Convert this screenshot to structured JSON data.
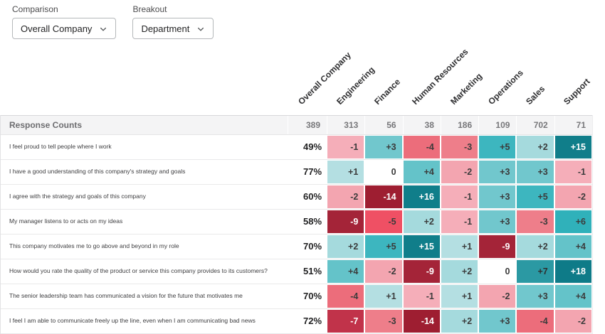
{
  "controls": {
    "comparison": {
      "label": "Comparison",
      "value": "Overall Company"
    },
    "breakout": {
      "label": "Breakout",
      "value": "Department"
    }
  },
  "icons": {
    "dropdown_chevron": "chevron-down"
  },
  "heatmap": {
    "corner_label": "Response Counts",
    "columns": [
      "Overall Company",
      "Engineering",
      "Finance",
      "Human Resources",
      "Marketing",
      "Operations",
      "Sales",
      "Support"
    ],
    "response_counts": [
      "389",
      "313",
      "56",
      "38",
      "186",
      "109",
      "702",
      "71"
    ],
    "rows": [
      {
        "label": "I feel proud to tell people where I work",
        "overall": "49%",
        "deltas": [
          -1,
          3,
          -4,
          -3,
          5,
          2,
          15
        ]
      },
      {
        "label": "I have a good understanding of this company's strategy and goals",
        "overall": "77%",
        "deltas": [
          1,
          0,
          4,
          -2,
          3,
          3,
          -1
        ]
      },
      {
        "label": "I agree with the strategy and goals of this company",
        "overall": "60%",
        "deltas": [
          -2,
          -14,
          16,
          -1,
          3,
          5,
          -2
        ]
      },
      {
        "label": "My manager listens to or acts on my ideas",
        "overall": "58%",
        "deltas": [
          -9,
          -5,
          2,
          -1,
          3,
          -3,
          6
        ]
      },
      {
        "label": "This company motivates me to go above and beyond in my role",
        "overall": "70%",
        "deltas": [
          2,
          5,
          15,
          1,
          -9,
          2,
          4
        ]
      },
      {
        "label": "How would you rate the quality of the product or service this company provides to its customers?",
        "overall": "51%",
        "deltas": [
          4,
          -2,
          -9,
          2,
          0,
          7,
          18
        ]
      },
      {
        "label": "The senior leadership team has communicated a vision for the future that motivates me",
        "overall": "70%",
        "deltas": [
          -4,
          1,
          -1,
          1,
          -2,
          3,
          4
        ]
      },
      {
        "label": "I feel I am able to communicate freely up the line, even when I am communicating bad news",
        "overall": "72%",
        "deltas": [
          -7,
          -3,
          -14,
          2,
          3,
          -4,
          -2
        ]
      }
    ],
    "palette": {
      "-14": {
        "bg": "#9e1e31",
        "fg": "#ffffff"
      },
      "-9": {
        "bg": "#a42438",
        "fg": "#ffffff"
      },
      "-7": {
        "bg": "#c1334a",
        "fg": "#ffffff"
      },
      "-5": {
        "bg": "#ef5064",
        "fg": "#3b3b3b"
      },
      "-4": {
        "bg": "#ec6d7b",
        "fg": "#3b3b3b"
      },
      "-3": {
        "bg": "#ee7e8a",
        "fg": "#3b3b3b"
      },
      "-2": {
        "bg": "#f3a5b0",
        "fg": "#3b3b3b"
      },
      "-1": {
        "bg": "#f5aeb9",
        "fg": "#3b3b3b"
      },
      "0": {
        "bg": "#ffffff",
        "fg": "#3b3b3b"
      },
      "1": {
        "bg": "#b4dfe2",
        "fg": "#3b3b3b"
      },
      "2": {
        "bg": "#a5dadd",
        "fg": "#3b3b3b"
      },
      "3": {
        "bg": "#71c7cd",
        "fg": "#3b3b3b"
      },
      "4": {
        "bg": "#64c3c9",
        "fg": "#3b3b3b"
      },
      "5": {
        "bg": "#3db6bf",
        "fg": "#3b3b3b"
      },
      "6": {
        "bg": "#30b1ba",
        "fg": "#3b3b3b"
      },
      "7": {
        "bg": "#2b99a3",
        "fg": "#2e2e2e"
      },
      "15": {
        "bg": "#107e8a",
        "fg": "#ffffff"
      },
      "16": {
        "bg": "#107e8a",
        "fg": "#ffffff"
      },
      "18": {
        "bg": "#0e7b88",
        "fg": "#ffffff"
      }
    }
  }
}
